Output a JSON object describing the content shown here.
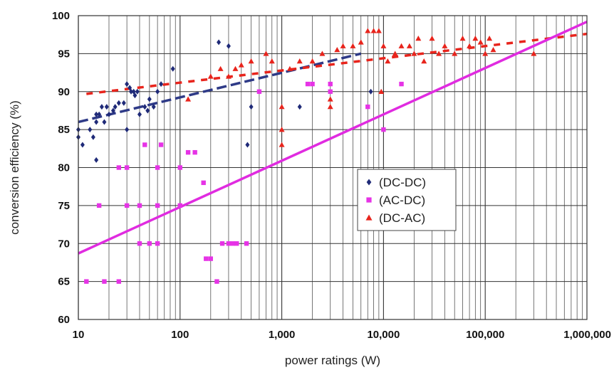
{
  "chart_data": {
    "type": "scatter",
    "title": "",
    "xlabel": "power ratings (W)",
    "ylabel": "conversion efficiency (%)",
    "xscale": "log",
    "xlim": [
      10,
      1000000
    ],
    "ylim": [
      60,
      100
    ],
    "grid": true,
    "legend_position": "center-right",
    "x_tick_labels": [
      "10",
      "100",
      "1,000",
      "10,000",
      "100,000",
      "1,000,000"
    ],
    "x_tick_values": [
      10,
      100,
      1000,
      10000,
      100000,
      1000000
    ],
    "y_tick_values": [
      60,
      65,
      70,
      75,
      80,
      85,
      90,
      95,
      100
    ],
    "series": [
      {
        "name": "(DC-DC)",
        "marker": "diamond",
        "color": "#1f2a78",
        "points": [
          [
            10,
            85
          ],
          [
            10,
            84
          ],
          [
            11,
            83
          ],
          [
            13,
            85
          ],
          [
            14,
            84
          ],
          [
            15,
            86
          ],
          [
            15,
            87
          ],
          [
            15,
            81
          ],
          [
            16,
            87
          ],
          [
            17,
            88
          ],
          [
            18,
            86
          ],
          [
            19,
            88
          ],
          [
            20,
            87
          ],
          [
            22,
            87.5
          ],
          [
            23,
            88
          ],
          [
            25,
            88.5
          ],
          [
            28,
            88.5
          ],
          [
            30,
            91
          ],
          [
            30,
            85
          ],
          [
            32,
            90.5
          ],
          [
            33,
            90
          ],
          [
            35,
            90
          ],
          [
            36,
            89.5
          ],
          [
            38,
            90
          ],
          [
            40,
            87
          ],
          [
            45,
            88
          ],
          [
            48,
            87.5
          ],
          [
            50,
            89
          ],
          [
            55,
            88
          ],
          [
            60,
            90
          ],
          [
            65,
            91
          ],
          [
            85,
            93
          ],
          [
            240,
            96.5
          ],
          [
            300,
            96
          ],
          [
            460,
            83
          ],
          [
            500,
            88
          ],
          [
            1500,
            88
          ],
          [
            7500,
            90
          ]
        ]
      },
      {
        "name": "(AC-DC)",
        "marker": "square",
        "color": "#e633e6",
        "points": [
          [
            12,
            65
          ],
          [
            16,
            75
          ],
          [
            18,
            65
          ],
          [
            25,
            80
          ],
          [
            25,
            65
          ],
          [
            30,
            80
          ],
          [
            30,
            75
          ],
          [
            40,
            75
          ],
          [
            40,
            70
          ],
          [
            45,
            83
          ],
          [
            50,
            70
          ],
          [
            60,
            80
          ],
          [
            60,
            75
          ],
          [
            60,
            70
          ],
          [
            65,
            83
          ],
          [
            100,
            80
          ],
          [
            100,
            75
          ],
          [
            120,
            82
          ],
          [
            140,
            82
          ],
          [
            170,
            78
          ],
          [
            180,
            68
          ],
          [
            200,
            68
          ],
          [
            230,
            65
          ],
          [
            260,
            70
          ],
          [
            300,
            70
          ],
          [
            330,
            70
          ],
          [
            360,
            70
          ],
          [
            450,
            70
          ],
          [
            600,
            90
          ],
          [
            1800,
            91
          ],
          [
            2000,
            91
          ],
          [
            3000,
            91
          ],
          [
            3000,
            90
          ],
          [
            7000,
            88
          ],
          [
            10000,
            85
          ],
          [
            15000,
            91
          ]
        ]
      },
      {
        "name": "(DC-AC)",
        "marker": "triangle",
        "color": "#e8241c",
        "points": [
          [
            120,
            89
          ],
          [
            200,
            92
          ],
          [
            250,
            93
          ],
          [
            300,
            92
          ],
          [
            350,
            93
          ],
          [
            400,
            93.5
          ],
          [
            500,
            94
          ],
          [
            700,
            95
          ],
          [
            800,
            94
          ],
          [
            1000,
            88
          ],
          [
            1000,
            85
          ],
          [
            1000,
            83
          ],
          [
            1200,
            93
          ],
          [
            1500,
            94
          ],
          [
            2000,
            94
          ],
          [
            2500,
            95
          ],
          [
            3000,
            89
          ],
          [
            3000,
            88
          ],
          [
            3500,
            95.5
          ],
          [
            4000,
            96
          ],
          [
            5000,
            96
          ],
          [
            6000,
            96.5
          ],
          [
            7000,
            98
          ],
          [
            8000,
            98
          ],
          [
            9000,
            98
          ],
          [
            9500,
            90
          ],
          [
            10000,
            96
          ],
          [
            11000,
            94
          ],
          [
            13000,
            95
          ],
          [
            15000,
            96
          ],
          [
            18000,
            96
          ],
          [
            20000,
            95
          ],
          [
            22000,
            97
          ],
          [
            25000,
            94
          ],
          [
            30000,
            97
          ],
          [
            35000,
            95
          ],
          [
            40000,
            96
          ],
          [
            50000,
            95
          ],
          [
            60000,
            97
          ],
          [
            70000,
            96
          ],
          [
            80000,
            97
          ],
          [
            90000,
            96.5
          ],
          [
            100000,
            95
          ],
          [
            110000,
            97
          ],
          [
            120000,
            95.5
          ],
          [
            300000,
            95
          ]
        ]
      }
    ],
    "trendlines": [
      {
        "series": "(DC-DC)",
        "style": "dashed",
        "color": "#2e3a87",
        "from": [
          10,
          86
        ],
        "to": [
          6000,
          95
        ]
      },
      {
        "series": "(DC-AC)",
        "style": "dashed",
        "color": "#e8241c",
        "from": [
          12,
          89.7
        ],
        "to": [
          1000000,
          97.6
        ]
      },
      {
        "series": "(AC-DC)",
        "style": "solid",
        "color": "#e02be0",
        "from": [
          10,
          68.7
        ],
        "to": [
          1000000,
          99.2
        ]
      }
    ]
  }
}
